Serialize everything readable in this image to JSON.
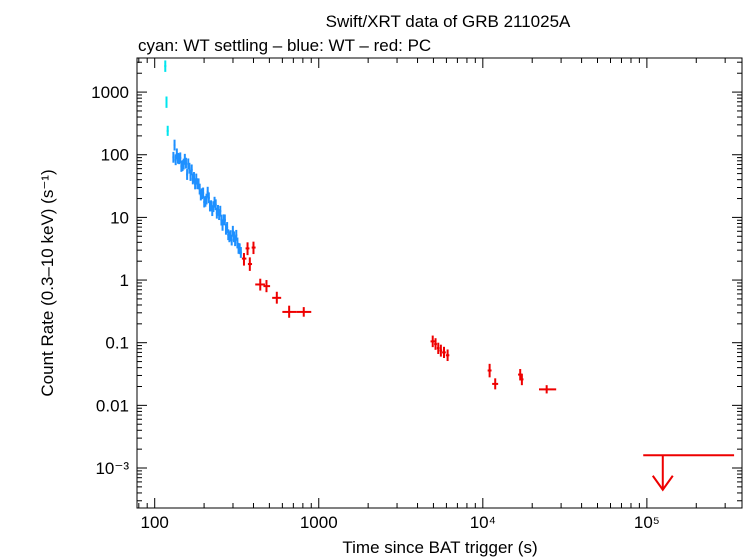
{
  "chart_data": {
    "type": "scatter",
    "title": "Swift/XRT data of GRB 211025A",
    "subtitle": "cyan: WT settling – blue: WT – red: PC",
    "xlabel": "Time since BAT trigger (s)",
    "ylabel": "Count Rate (0.3–10 keV) (s⁻¹)",
    "xscale": "log",
    "yscale": "log",
    "xlim": [
      78,
      380000
    ],
    "ylim": [
      0.00023,
      3500
    ],
    "x_ticks": [
      {
        "value": 100,
        "label": "100"
      },
      {
        "value": 1000,
        "label": "1000"
      },
      {
        "value": 10000,
        "label": "10⁴"
      },
      {
        "value": 100000,
        "label": "10⁵"
      }
    ],
    "y_ticks": [
      {
        "value": 1000,
        "label": "1000"
      },
      {
        "value": 100,
        "label": "100"
      },
      {
        "value": 10,
        "label": "10"
      },
      {
        "value": 1,
        "label": "1"
      },
      {
        "value": 0.1,
        "label": "0.1"
      },
      {
        "value": 0.01,
        "label": "0.01"
      },
      {
        "value": 0.001,
        "label": "10⁻³"
      }
    ],
    "series": [
      {
        "name": "WT settling",
        "color": "#00e5ee",
        "points": [
          {
            "x": 116,
            "y": 2600,
            "ylo": 2100,
            "yhi": 3200
          },
          {
            "x": 118,
            "y": 700,
            "ylo": 560,
            "yhi": 850
          },
          {
            "x": 120,
            "y": 240,
            "ylo": 200,
            "yhi": 290
          }
        ]
      },
      {
        "name": "WT",
        "color": "#1e90ff",
        "trend": {
          "x_start": 130,
          "x_end": 335,
          "y_start": 120,
          "y_end": 3.3,
          "n": 60,
          "scatter_dex": 0.12
        }
      },
      {
        "name": "PC",
        "color": "#ee0000",
        "points": [
          {
            "x": 350,
            "y": 2.2,
            "xlo": 340,
            "xhi": 362,
            "ylo": 1.7,
            "yhi": 2.7
          },
          {
            "x": 368,
            "y": 3.2,
            "xlo": 358,
            "xhi": 378,
            "ylo": 2.5,
            "yhi": 4.0
          },
          {
            "x": 380,
            "y": 1.8,
            "xlo": 370,
            "xhi": 392,
            "ylo": 1.4,
            "yhi": 2.3
          },
          {
            "x": 400,
            "y": 3.3,
            "xlo": 390,
            "xhi": 412,
            "ylo": 2.6,
            "yhi": 4.1
          },
          {
            "x": 440,
            "y": 0.85,
            "xlo": 410,
            "xhi": 470,
            "ylo": 0.68,
            "yhi": 1.05
          },
          {
            "x": 480,
            "y": 0.8,
            "xlo": 460,
            "xhi": 505,
            "ylo": 0.64,
            "yhi": 1.0
          },
          {
            "x": 555,
            "y": 0.52,
            "xlo": 520,
            "xhi": 590,
            "ylo": 0.42,
            "yhi": 0.65
          },
          {
            "x": 660,
            "y": 0.31,
            "xlo": 600,
            "xhi": 730,
            "ylo": 0.25,
            "yhi": 0.39
          },
          {
            "x": 810,
            "y": 0.31,
            "xlo": 730,
            "xhi": 900,
            "ylo": 0.26,
            "yhi": 0.37
          },
          {
            "x": 4950,
            "y": 0.105,
            "xlo": 4800,
            "xhi": 5100,
            "ylo": 0.085,
            "yhi": 0.13
          },
          {
            "x": 5150,
            "y": 0.095,
            "xlo": 5050,
            "xhi": 5250,
            "ylo": 0.077,
            "yhi": 0.118
          },
          {
            "x": 5350,
            "y": 0.082,
            "xlo": 5250,
            "xhi": 5450,
            "ylo": 0.066,
            "yhi": 0.1
          },
          {
            "x": 5550,
            "y": 0.075,
            "xlo": 5450,
            "xhi": 5650,
            "ylo": 0.06,
            "yhi": 0.093
          },
          {
            "x": 5800,
            "y": 0.07,
            "xlo": 5650,
            "xhi": 5950,
            "ylo": 0.057,
            "yhi": 0.086
          },
          {
            "x": 6100,
            "y": 0.063,
            "xlo": 5950,
            "xhi": 6250,
            "ylo": 0.051,
            "yhi": 0.078
          },
          {
            "x": 11000,
            "y": 0.036,
            "xlo": 10700,
            "xhi": 11300,
            "ylo": 0.028,
            "yhi": 0.046
          },
          {
            "x": 11900,
            "y": 0.022,
            "xlo": 11400,
            "xhi": 12400,
            "ylo": 0.018,
            "yhi": 0.027
          },
          {
            "x": 16900,
            "y": 0.031,
            "xlo": 16400,
            "xhi": 17400,
            "ylo": 0.025,
            "yhi": 0.038
          },
          {
            "x": 17300,
            "y": 0.026,
            "xlo": 16900,
            "xhi": 17700,
            "ylo": 0.021,
            "yhi": 0.032
          },
          {
            "x": 24500,
            "y": 0.018,
            "xlo": 22000,
            "xhi": 28000,
            "ylo": 0.0155,
            "yhi": 0.021
          }
        ]
      }
    ],
    "upper_limits": [
      {
        "x": 125000,
        "xlo": 95000,
        "xhi": 340000,
        "y": 0.0016,
        "arrow_to": 0.00045,
        "color": "#ee0000"
      }
    ]
  }
}
